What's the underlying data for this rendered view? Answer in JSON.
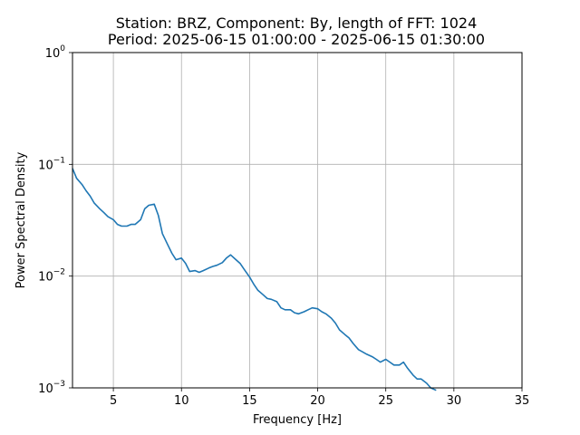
{
  "chart_data": {
    "type": "line",
    "title_line1": "Station: BRZ, Component: By, length of FFT: 1024",
    "title_line2": "Period: 2025-06-15 01:00:00 - 2025-06-15 01:30:00",
    "xlabel": "Frequency [Hz]",
    "ylabel": "Power Spectral Density",
    "xlim": [
      2,
      35
    ],
    "ylim": [
      0.001,
      1
    ],
    "yscale": "log",
    "grid": true,
    "line_color": "#1f77b4",
    "xticks": [
      {
        "value": 5,
        "label": "5"
      },
      {
        "value": 10,
        "label": "10"
      },
      {
        "value": 15,
        "label": "15"
      },
      {
        "value": 20,
        "label": "20"
      },
      {
        "value": 25,
        "label": "25"
      },
      {
        "value": 30,
        "label": "30"
      },
      {
        "value": 35,
        "label": "35"
      }
    ],
    "yticks": [
      {
        "value": 0.001,
        "base": "10",
        "exp": "−3"
      },
      {
        "value": 0.01,
        "base": "10",
        "exp": "−2"
      },
      {
        "value": 0.1,
        "base": "10",
        "exp": "−1"
      },
      {
        "value": 1,
        "base": "10",
        "exp": "0"
      }
    ],
    "series": [
      {
        "x": [
          2.0,
          2.3,
          2.7,
          3.0,
          3.3,
          3.6,
          4.0,
          4.3,
          4.6,
          5.0,
          5.3,
          5.6,
          6.0,
          6.3,
          6.6,
          7.0,
          7.3,
          7.6,
          8.0,
          8.3,
          8.6,
          9.0,
          9.3,
          9.6,
          10.0,
          10.3,
          10.6,
          11.0,
          11.3,
          11.6,
          12.0,
          12.3,
          12.6,
          13.0,
          13.3,
          13.6,
          14.0,
          14.3,
          14.6,
          15.0,
          15.3,
          15.6,
          16.0,
          16.3,
          16.6,
          17.0,
          17.3,
          17.6,
          18.0,
          18.3,
          18.6,
          19.0,
          19.3,
          19.6,
          20.0,
          20.3,
          20.6,
          21.0,
          21.3,
          21.6,
          22.0,
          22.3,
          22.6,
          23.0,
          23.3,
          23.6,
          24.0,
          24.3,
          24.6,
          25.0,
          25.3,
          25.6,
          26.0,
          26.3,
          26.6,
          27.0,
          27.3,
          27.6,
          28.0,
          28.3,
          28.7
        ],
        "y": [
          0.092,
          0.075,
          0.066,
          0.058,
          0.052,
          0.045,
          0.04,
          0.037,
          0.034,
          0.032,
          0.029,
          0.028,
          0.028,
          0.029,
          0.029,
          0.032,
          0.04,
          0.043,
          0.044,
          0.035,
          0.024,
          0.019,
          0.016,
          0.014,
          0.0145,
          0.013,
          0.011,
          0.0112,
          0.0108,
          0.0112,
          0.0118,
          0.0122,
          0.0125,
          0.0132,
          0.0145,
          0.0155,
          0.014,
          0.013,
          0.0115,
          0.0098,
          0.0085,
          0.0075,
          0.0068,
          0.0063,
          0.0062,
          0.0059,
          0.0052,
          0.005,
          0.005,
          0.0047,
          0.0046,
          0.0048,
          0.005,
          0.0052,
          0.0051,
          0.0048,
          0.0046,
          0.0042,
          0.0038,
          0.0033,
          0.003,
          0.0028,
          0.0025,
          0.0022,
          0.0021,
          0.002,
          0.0019,
          0.0018,
          0.0017,
          0.0018,
          0.0017,
          0.0016,
          0.0016,
          0.0017,
          0.0015,
          0.0013,
          0.0012,
          0.0012,
          0.0011,
          0.001,
          0.00095
        ]
      }
    ]
  }
}
